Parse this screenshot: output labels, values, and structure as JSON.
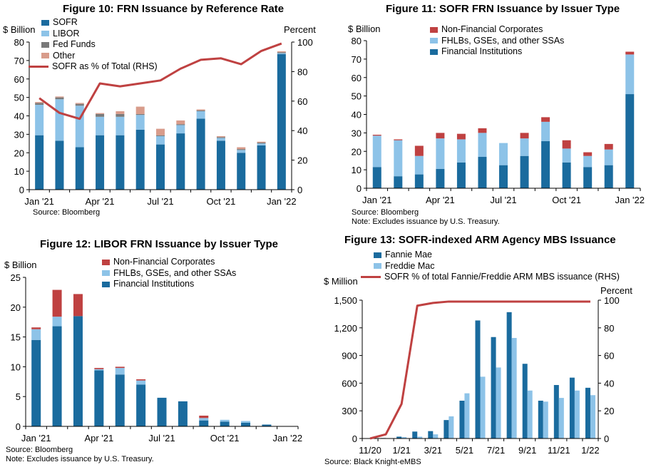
{
  "colors": {
    "sofr": "#1a6b9e",
    "libor": "#8dc3e8",
    "fedfunds": "#7a7a7a",
    "other": "#d89c8b",
    "line": "#bf4141",
    "nonfin": "#bf4141",
    "fhlb": "#8dc3e8",
    "fin": "#1a6b9e",
    "fannie": "#1a6b9e",
    "freddie": "#8dc3e8"
  },
  "figures": [
    {
      "title": "Figure 10: FRN Issuance by Reference Rate",
      "source": "Source: Bloomberg",
      "note": "",
      "legend": [
        "SOFR",
        "LIBOR",
        "Fed Funds",
        "Other",
        "SOFR as % of Total (RHS)"
      ]
    },
    {
      "title": "Figure 11: SOFR FRN Issuance by Issuer Type",
      "source": "Source: Bloomberg",
      "note": "Note: Excludes  issuance by U.S. Treasury.",
      "legend": [
        "Non-Financial Corporates",
        "FHLBs, GSEs, and other SSAs",
        "Financial Institutions"
      ]
    },
    {
      "title": "Figure 12: LIBOR FRN Issuance by Issuer Type",
      "source": "Source: Bloomberg",
      "note": "Note: Excludes  issuance by U.S. Treasury.",
      "legend": [
        "Non-Financial Corporates",
        "FHLBs, GSEs, and other SSAs",
        "Financial Institutions"
      ]
    },
    {
      "title": "Figure 13: SOFR-indexed ARM Agency MBS Issuance",
      "source": "Source: Black Knight-eMBS",
      "note": "",
      "legend": [
        "Fannie Mae",
        "Freddie Mac",
        "SOFR % of total Fannie/Freddie ARM MBS issuance (RHS)"
      ]
    }
  ],
  "chart_data": [
    {
      "type": "bar",
      "stacked": true,
      "title": "Figure 10: FRN Issuance by Reference Rate",
      "ylabel": "$ Billion",
      "y2label": "Percent",
      "ylim": [
        0,
        80
      ],
      "y2lim": [
        0,
        100
      ],
      "yticks": [
        "0",
        "10",
        "20",
        "30",
        "40",
        "50",
        "60",
        "70",
        "80"
      ],
      "y2ticks": [
        "0",
        "20",
        "40",
        "60",
        "80",
        "100"
      ],
      "categories": [
        "Jan '21",
        "Feb '21",
        "Mar '21",
        "Apr '21",
        "May '21",
        "Jun '21",
        "Jul '21",
        "Aug '21",
        "Sep '21",
        "Oct '21",
        "Nov '21",
        "Dec '21",
        "Jan '22"
      ],
      "xtick_labels": [
        "Jan '21",
        "Apr '21",
        "Jul '21",
        "Oct '21",
        "Jan '22"
      ],
      "xtick_index": [
        0,
        3,
        6,
        9,
        12
      ],
      "series": [
        {
          "name": "SOFR",
          "values": [
            29.5,
            26.5,
            23,
            29.5,
            29.5,
            32.5,
            24.5,
            30.5,
            38.5,
            26.5,
            20,
            24,
            73.5
          ]
        },
        {
          "name": "LIBOR",
          "values": [
            16.5,
            22.5,
            22.5,
            10,
            10,
            8,
            4.5,
            4.5,
            4,
            1.5,
            1.5,
            1,
            0.5
          ]
        },
        {
          "name": "Fed Funds",
          "values": [
            1,
            1,
            1,
            1.5,
            1.5,
            0.5,
            0.5,
            0.5,
            0.5,
            0.5,
            0.5,
            0.5,
            0.5
          ]
        },
        {
          "name": "Other",
          "values": [
            0.5,
            0.5,
            0.5,
            0.5,
            1.5,
            4,
            3.5,
            2,
            0.5,
            0.5,
            1,
            0.5,
            0.5
          ]
        }
      ],
      "line": {
        "name": "SOFR as % of Total (RHS)",
        "values": [
          62,
          52,
          48,
          72,
          70,
          72,
          74,
          82,
          88,
          89,
          85,
          94,
          99
        ]
      }
    },
    {
      "type": "bar",
      "stacked": true,
      "title": "Figure 11: SOFR FRN Issuance by Issuer Type",
      "ylabel": "$ Billion",
      "ylim": [
        0,
        80
      ],
      "yticks": [
        "0",
        "10",
        "20",
        "30",
        "40",
        "50",
        "60",
        "70",
        "80"
      ],
      "categories": [
        "Jan '21",
        "Feb '21",
        "Mar '21",
        "Apr '21",
        "May '21",
        "Jun '21",
        "Jul '21",
        "Aug '21",
        "Sep '21",
        "Oct '21",
        "Nov '21",
        "Dec '21",
        "Jan '22"
      ],
      "xtick_labels": [
        "Jan '21",
        "Apr '21",
        "Jul '21",
        "Oct '21",
        "Jan '22"
      ],
      "xtick_index": [
        0,
        3,
        6,
        9,
        12
      ],
      "series": [
        {
          "name": "Financial Institutions",
          "values": [
            11.5,
            6.5,
            7.5,
            10.5,
            14,
            17,
            12.5,
            17.5,
            25.5,
            14,
            11.5,
            12.5,
            51
          ]
        },
        {
          "name": "FHLBs, GSEs, and other SSAs",
          "values": [
            17,
            19.5,
            10,
            16.5,
            12.5,
            13,
            12,
            9.5,
            10.5,
            7.5,
            6,
            8.5,
            21.5
          ]
        },
        {
          "name": "Non-Financial Corporates",
          "values": [
            0.5,
            0.5,
            5.5,
            3,
            3,
            2.5,
            0,
            3,
            2.5,
            4.5,
            2,
            3,
            1.5
          ]
        }
      ]
    },
    {
      "type": "bar",
      "stacked": true,
      "title": "Figure 12: LIBOR FRN Issuance by Issuer Type",
      "ylabel": "$ Billion",
      "ylim": [
        0,
        25
      ],
      "yticks": [
        "0",
        "5",
        "10",
        "15",
        "20",
        "25"
      ],
      "categories": [
        "Jan '21",
        "Feb '21",
        "Mar '21",
        "Apr '21",
        "May '21",
        "Jun '21",
        "Jul '21",
        "Aug '21",
        "Sep '21",
        "Oct '21",
        "Nov '21",
        "Dec '21",
        "Jan '22"
      ],
      "xtick_labels": [
        "Jan '21",
        "Apr '21",
        "Jul '21",
        "Oct '21",
        "Jan '22"
      ],
      "xtick_index": [
        0,
        3,
        6,
        9,
        12
      ],
      "series": [
        {
          "name": "Financial Institutions",
          "values": [
            14.5,
            16.8,
            18.5,
            9.4,
            8.7,
            7,
            4.8,
            4.2,
            1,
            0.8,
            0.6,
            0.3,
            0
          ]
        },
        {
          "name": "FHLBs, GSEs, and other SSAs",
          "values": [
            1.8,
            1.6,
            0,
            0.2,
            1.1,
            0.7,
            0,
            0,
            0.4,
            0.3,
            0.3,
            0,
            0
          ]
        },
        {
          "name": "Non-Financial Corporates",
          "values": [
            0.3,
            4.5,
            3.7,
            0.2,
            0.2,
            0.2,
            0,
            0,
            0.4,
            0,
            0,
            0,
            0
          ]
        }
      ]
    },
    {
      "type": "bar",
      "title": "Figure 13: SOFR-indexed ARM Agency MBS Issuance",
      "ylabel": "$ Million",
      "y2label": "Percent",
      "ylim": [
        0,
        1500
      ],
      "y2lim": [
        0,
        100
      ],
      "yticks": [
        "0",
        "300",
        "600",
        "900",
        "1,200",
        "1,500"
      ],
      "y2ticks": [
        "0",
        "20",
        "40",
        "60",
        "80",
        "100"
      ],
      "categories": [
        "11/20",
        "12/20",
        "1/21",
        "2/21",
        "3/21",
        "4/21",
        "5/21",
        "6/21",
        "7/21",
        "8/21",
        "9/21",
        "10/21",
        "11/21",
        "12/21",
        "1/22"
      ],
      "xtick_labels": [
        "11/20",
        "1/21",
        "3/21",
        "5/21",
        "7/21",
        "9/21",
        "11/21",
        "1/22"
      ],
      "xtick_index": [
        0,
        2,
        4,
        6,
        8,
        10,
        12,
        14
      ],
      "series": [
        {
          "name": "Fannie Mae",
          "values": [
            0,
            5,
            20,
            75,
            80,
            200,
            410,
            1280,
            1100,
            1370,
            810,
            410,
            580,
            660,
            550
          ]
        },
        {
          "name": "Freddie Mac",
          "values": [
            0,
            0,
            15,
            20,
            45,
            240,
            490,
            670,
            770,
            1090,
            520,
            400,
            440,
            520,
            470
          ]
        }
      ],
      "line": {
        "name": "SOFR % of total Fannie/Freddie ARM MBS issuance (RHS)",
        "values": [
          0,
          3,
          25,
          96,
          98,
          99,
          99,
          99,
          99,
          99,
          99,
          99,
          99,
          99,
          99
        ]
      }
    }
  ]
}
